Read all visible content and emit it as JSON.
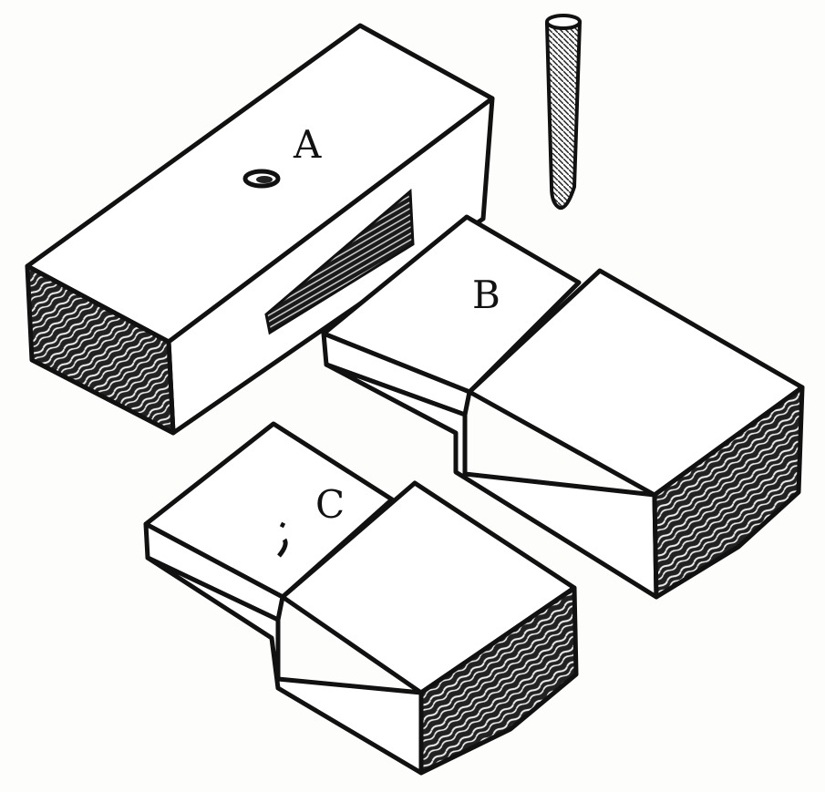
{
  "labels": {
    "a": "A",
    "b": "B",
    "c": "C"
  },
  "colors": {
    "ink": "#111111",
    "paper": "#fdfdfb"
  }
}
